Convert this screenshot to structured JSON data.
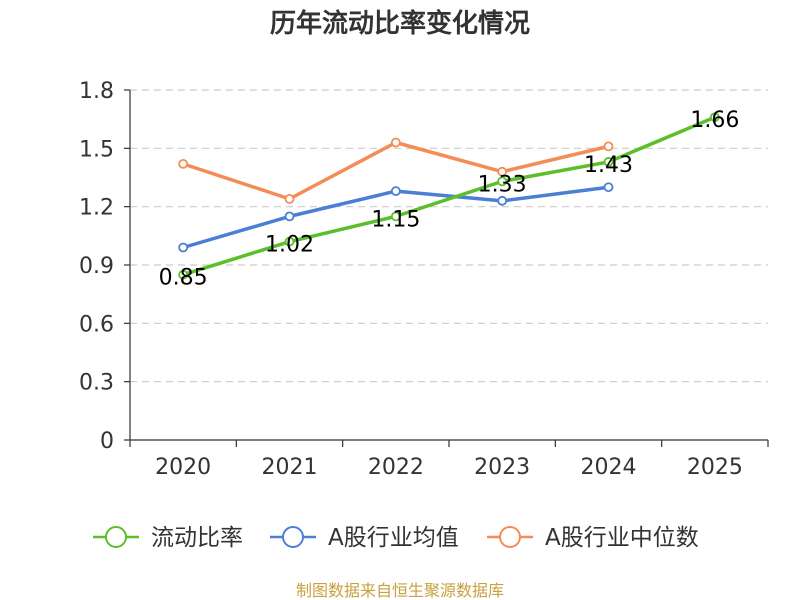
{
  "chart_data": {
    "type": "line",
    "title": "历年流动比率变化情况",
    "categories": [
      "2020",
      "2021",
      "2022",
      "2023",
      "2024",
      "2025"
    ],
    "ylim": [
      0,
      1.8
    ],
    "yticks": [
      "0",
      "0.3",
      "0.6",
      "0.9",
      "1.2",
      "1.5",
      "1.8"
    ],
    "ytick_values": [
      0,
      0.3,
      0.6,
      0.9,
      1.2,
      1.5,
      1.8
    ],
    "grid": true,
    "legend_position": "bottom",
    "series": [
      {
        "name": "流动比率",
        "color": "#5cbf2a",
        "values": [
          0.85,
          1.02,
          1.15,
          1.33,
          1.43,
          1.66
        ],
        "labels": [
          "0.85",
          "1.02",
          "1.15",
          "1.33",
          "1.43",
          "1.66"
        ]
      },
      {
        "name": "A股行业均值",
        "color": "#4a7fd4",
        "values": [
          0.99,
          1.15,
          1.28,
          1.23,
          1.3,
          null
        ]
      },
      {
        "name": "A股行业中位数",
        "color": "#f58c55",
        "values": [
          1.42,
          1.24,
          1.53,
          1.38,
          1.51,
          null
        ]
      }
    ],
    "source": "制图数据来自恒生聚源数据库"
  }
}
